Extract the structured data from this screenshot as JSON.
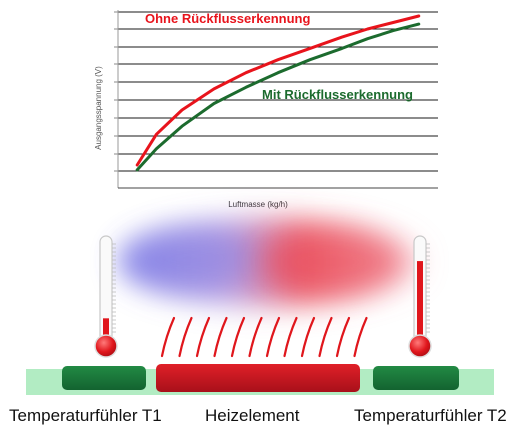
{
  "chart_data": {
    "type": "line",
    "xlabel": "Luftmasse (kg/h)",
    "ylabel": "Ausgangsspannung (V)",
    "grid": true,
    "x_ticks_shown": false,
    "y_ticks_shown": false,
    "series": [
      {
        "name": "Ohne Rückflusserkennung",
        "color": "#e8141c",
        "x": [
          0.06,
          0.12,
          0.2,
          0.3,
          0.4,
          0.5,
          0.6,
          0.7,
          0.78,
          0.86,
          0.94
        ],
        "y": [
          0.08,
          0.27,
          0.42,
          0.55,
          0.65,
          0.73,
          0.8,
          0.87,
          0.92,
          0.96,
          1.0
        ]
      },
      {
        "name": "Mit Rückflusserkennung",
        "color": "#1c6b2e",
        "x": [
          0.06,
          0.12,
          0.2,
          0.3,
          0.4,
          0.5,
          0.6,
          0.7,
          0.78,
          0.86,
          0.94
        ],
        "y": [
          0.05,
          0.18,
          0.32,
          0.46,
          0.56,
          0.65,
          0.73,
          0.8,
          0.86,
          0.91,
          0.95
        ]
      }
    ]
  },
  "diagram": {
    "labels": {
      "sensor_t1": "Temperaturfühler T1",
      "heater": "Heizelement",
      "sensor_t2": "Temperaturfühler T2"
    },
    "thermometers": [
      {
        "id": "t1",
        "fill_level": 0.28,
        "color": "#e0161c"
      },
      {
        "id": "t2",
        "fill_level": 0.82,
        "color": "#e0161c"
      }
    ],
    "colors": {
      "substrate": "#aee8bf",
      "sensor_pad": "#1a7a3a",
      "heater": "#c8161e",
      "heat_lines": "#e0161c",
      "cold_air": "#7a7ae0",
      "warm_air": "#e83040"
    }
  }
}
